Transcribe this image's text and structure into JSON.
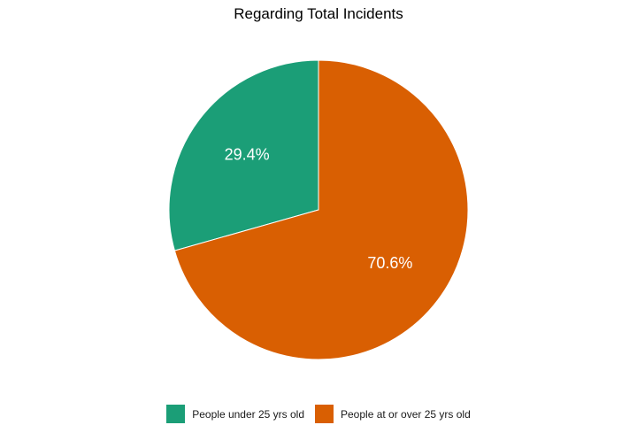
{
  "chart_data": {
    "type": "pie",
    "title": "Regarding Total Incidents",
    "slices": [
      {
        "label": "People under 25 yrs old",
        "value": 29.4,
        "value_label": "29.4%",
        "color": "#1b9e77"
      },
      {
        "label": "People at or over 25 yrs old",
        "value": 70.6,
        "value_label": "70.6%",
        "color": "#d95f02"
      }
    ],
    "start_angle": "12 o'clock",
    "direction": "counterclockwise",
    "legend_position": "bottom"
  }
}
